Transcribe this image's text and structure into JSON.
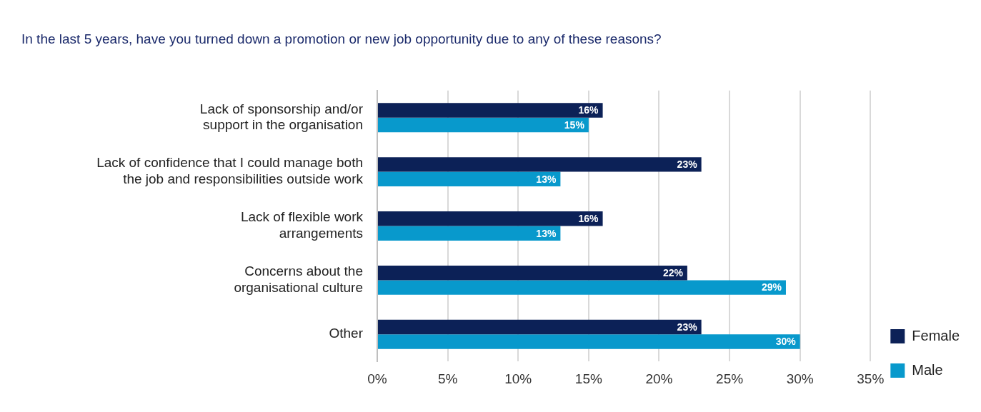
{
  "chart_data": {
    "type": "bar",
    "orientation": "horizontal",
    "title": "In the last 5 years, have you turned down a promotion or new job opportunity due to any of these reasons?",
    "categories": [
      "Lack of sponsorship and/or\nsupport in the organisation",
      "Lack of confidence that I could manage both\nthe job and responsibilities outside work",
      "Lack of flexible work\narrangements",
      "Concerns about the\norganisational culture",
      "Other"
    ],
    "series": [
      {
        "name": "Female",
        "color": "#0c2157",
        "values": [
          16,
          23,
          16,
          22,
          23
        ],
        "value_labels": [
          "16%",
          "23%",
          "16%",
          "22%",
          "23%"
        ]
      },
      {
        "name": "Male",
        "color": "#0899cc",
        "values": [
          15,
          13,
          13,
          29,
          30
        ],
        "value_labels": [
          "15%",
          "13%",
          "13%",
          "29%",
          "30%"
        ]
      }
    ],
    "xlim": [
      0,
      35
    ],
    "xticks": [
      {
        "value": 0,
        "label": "0%"
      },
      {
        "value": 5,
        "label": "5%"
      },
      {
        "value": 10,
        "label": "10%"
      },
      {
        "value": 15,
        "label": "15%"
      },
      {
        "value": 20,
        "label": "20%"
      },
      {
        "value": 25,
        "label": "25%"
      },
      {
        "value": 30,
        "label": "30%"
      },
      {
        "value": 35,
        "label": "35%"
      }
    ],
    "grid": "x",
    "legend": "bottom right"
  }
}
